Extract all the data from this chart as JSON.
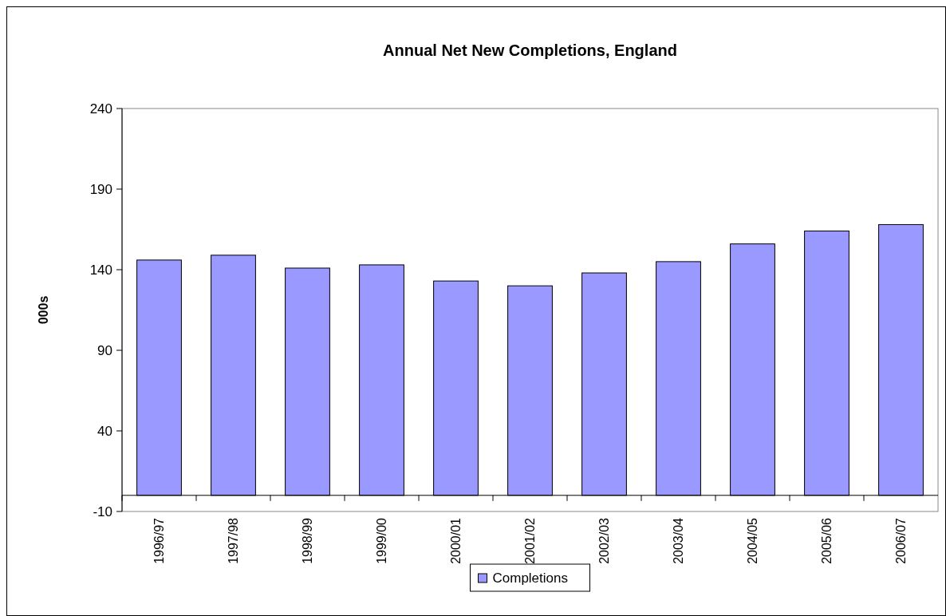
{
  "chart_data": {
    "type": "bar",
    "title": "Annual Net New Completions, England",
    "ylabel": "000s",
    "categories": [
      "1996/97",
      "1997/98",
      "1998/99",
      "1999/00",
      "2000/01",
      "2001/02",
      "2002/03",
      "2003/04",
      "2004/05",
      "2005/06",
      "2006/07"
    ],
    "series": [
      {
        "name": "Completions",
        "color": "#9999ff",
        "values": [
          146,
          149,
          141,
          143,
          133,
          130,
          138,
          145,
          156,
          164,
          168
        ]
      }
    ],
    "ylim": [
      -10,
      240
    ],
    "yticks": [
      -10,
      40,
      90,
      140,
      190,
      240
    ],
    "grid": false,
    "legend": "bottom"
  }
}
